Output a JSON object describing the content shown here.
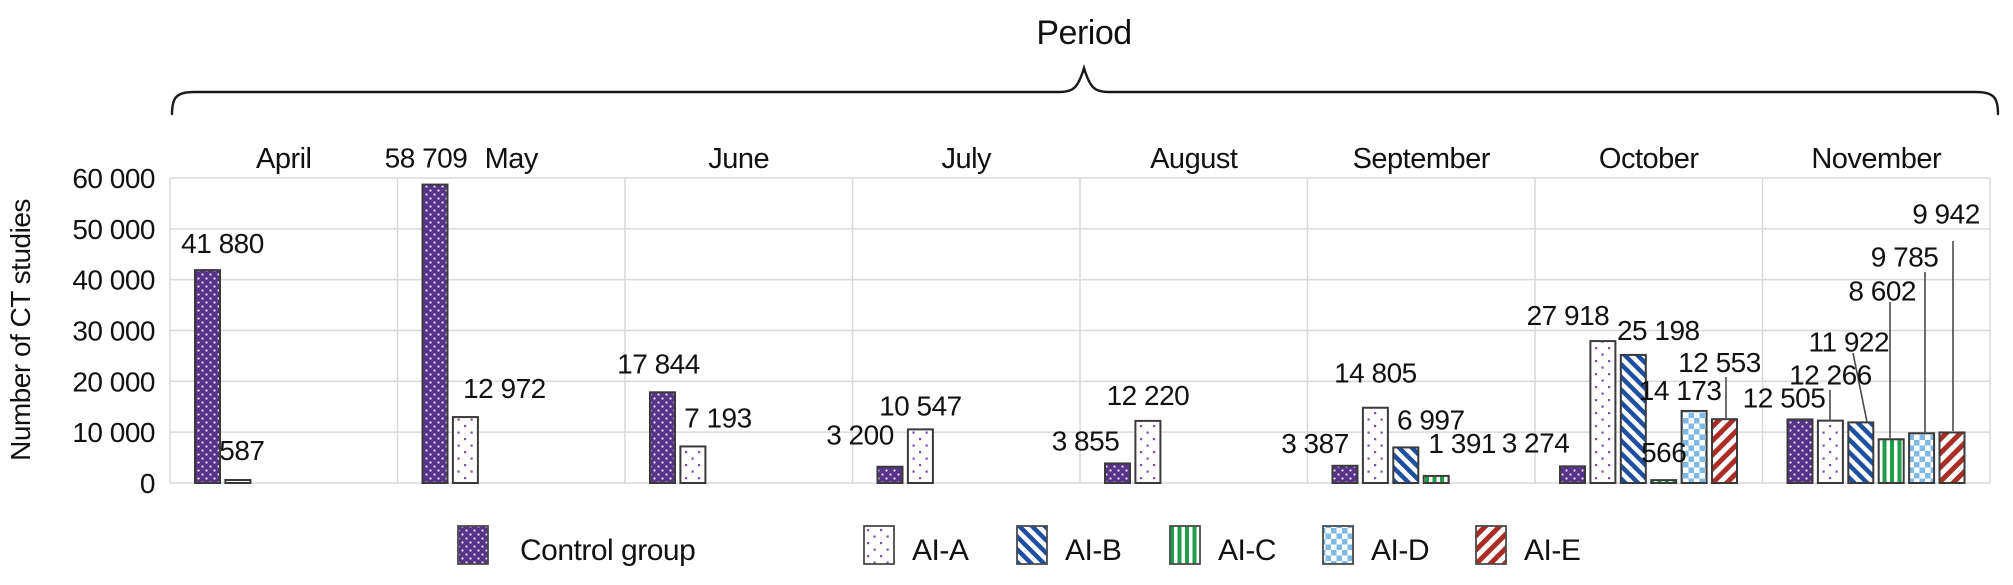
{
  "colors": {
    "background": "#ffffff",
    "text": "#111111",
    "grid": "#d9d9d9",
    "bar_outline": "#3a3a3a",
    "leader_line": "#4a4a4a",
    "control_purple": "#563589",
    "ai_a_dot_purple": "#7b4fb0",
    "ai_b_blue": "#1e4fa1",
    "ai_c_green": "#1e9e4a",
    "ai_d_light_blue": "#7fb9e6",
    "ai_e_red": "#aa2e25"
  },
  "chart_data": {
    "type": "bar",
    "title": "Period",
    "ylabel": "Number of CT studies",
    "xlabel": "",
    "ylim": [
      0,
      60000
    ],
    "ytick_interval": 10000,
    "ytick_labels": [
      "0",
      "10 000",
      "20 000",
      "30 000",
      "40 000",
      "50 000",
      "60 000"
    ],
    "grid": true,
    "legend_position": "bottom",
    "value_label_format": "space-thousands",
    "categories": [
      "April",
      "May",
      "June",
      "July",
      "August",
      "September",
      "October",
      "November"
    ],
    "series": [
      {
        "name": "Control group",
        "pattern": "purple-dots",
        "color": "#563589",
        "values": [
          41880,
          58709,
          17844,
          3200,
          3855,
          3387,
          3274,
          12505
        ],
        "labels": [
          "41 880",
          "58 709",
          "17 844",
          "3 200",
          "3 855",
          "3 387",
          "3 274",
          "12 505"
        ]
      },
      {
        "name": "AI-A",
        "pattern": "white-purple-dots",
        "color": "#7b4fb0",
        "values": [
          587,
          12972,
          7193,
          10547,
          12220,
          14805,
          27918,
          12266
        ],
        "labels": [
          "587",
          "12 972",
          "7 193",
          "10 547",
          "12 220",
          "14 805",
          "27 918",
          "12 266"
        ]
      },
      {
        "name": "AI-B",
        "pattern": "blue-diagonal-stripes",
        "color": "#1e4fa1",
        "values": [
          null,
          null,
          null,
          null,
          null,
          6997,
          25198,
          11922
        ],
        "labels": [
          null,
          null,
          null,
          null,
          null,
          "6 997",
          "25 198",
          "11 922"
        ]
      },
      {
        "name": "AI-C",
        "pattern": "green-vertical-stripes",
        "color": "#1e9e4a",
        "values": [
          null,
          null,
          null,
          null,
          null,
          1391,
          566,
          8602
        ],
        "labels": [
          null,
          null,
          null,
          null,
          null,
          "1 391",
          "566",
          "8 602"
        ]
      },
      {
        "name": "AI-D",
        "pattern": "blue-checkerboard",
        "color": "#7fb9e6",
        "values": [
          null,
          null,
          null,
          null,
          null,
          null,
          14173,
          9785
        ],
        "labels": [
          null,
          null,
          null,
          null,
          null,
          null,
          "14 173",
          "9 785"
        ]
      },
      {
        "name": "AI-E",
        "pattern": "red-diagonal-stripes",
        "color": "#aa2e25",
        "values": [
          null,
          null,
          null,
          null,
          null,
          null,
          12553,
          9942
        ],
        "labels": [
          null,
          null,
          null,
          null,
          null,
          null,
          "12 553",
          "9 942"
        ]
      }
    ]
  }
}
